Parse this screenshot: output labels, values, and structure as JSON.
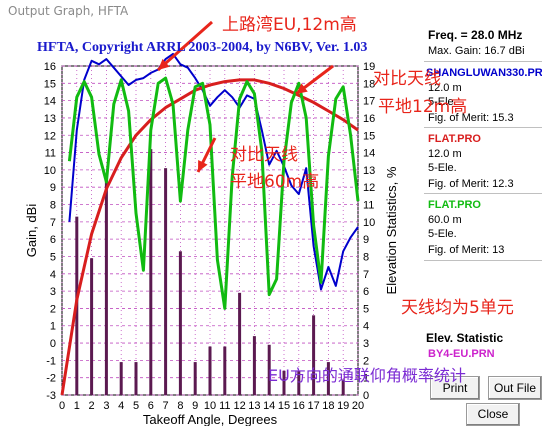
{
  "window": {
    "title": "Output Graph, HFTA"
  },
  "chart_title": "HFTA, Copyright ARRL 2003-2004, by N6BV, Ver. 1.03",
  "side_panel": {
    "freq": "Freq. = 28.0 MHz",
    "max_gain": "Max. Gain: 16.7 dBi",
    "entries": [
      {
        "name": "SHANGLUWAN330.PR",
        "height": "12.0 m",
        "elements": "5-Ele.",
        "fom": "Fig. of Merit:  15.3",
        "color": "#0000cc"
      },
      {
        "name": "FLAT.PRO",
        "height": "12.0 m",
        "elements": "5-Ele.",
        "fom": "Fig. of Merit:  12.3",
        "color": "#d81e1e"
      },
      {
        "name": "FLAT.PRO",
        "height": "60.0 m",
        "elements": "5-Ele.",
        "fom": "Fig. of Merit:  13",
        "color": "#11bb11"
      }
    ],
    "elev_title": "Elev. Statistic",
    "elev_file": "BY4-EU.PRN",
    "elev_file_color": "#cc22cc",
    "buttons": {
      "print": "Print",
      "out_file": "Out File",
      "close": "Close"
    }
  },
  "annotations": [
    {
      "text": "上路湾EU,12m高"
    },
    {
      "text": "对比天线"
    },
    {
      "text": "平地12m高"
    },
    {
      "text": "对比天线"
    },
    {
      "text": "平地60m高"
    },
    {
      "text": "天线均为5单元"
    },
    {
      "text": "EU方向的通联仰角概率统计"
    }
  ],
  "chart_data": {
    "type": "line",
    "xlabel": "Takeoff Angle, Degrees",
    "ylabel": "Gain, dBi",
    "y2label": "Elevation Statistics, %",
    "xlim": [
      0,
      20
    ],
    "ylim": [
      -3,
      16
    ],
    "y2lim": [
      0,
      19
    ],
    "x_ticks": [
      0,
      1,
      2,
      3,
      4,
      5,
      6,
      7,
      8,
      9,
      10,
      11,
      12,
      13,
      14,
      15,
      16,
      17,
      18,
      19,
      20
    ],
    "y_ticks": [
      -3,
      -2,
      -1,
      0,
      1,
      2,
      3,
      4,
      5,
      6,
      7,
      8,
      9,
      10,
      11,
      12,
      13,
      14,
      15,
      16
    ],
    "y2_ticks": [
      0,
      1,
      2,
      3,
      4,
      5,
      6,
      7,
      8,
      9,
      10,
      11,
      12,
      13,
      14,
      15,
      16,
      17,
      18,
      19
    ],
    "series": [
      {
        "name": "SHANGLUWAN330.PR",
        "color": "#0000cc",
        "x": [
          0.5,
          1,
          1.5,
          2,
          2.5,
          3,
          3.5,
          4,
          4.5,
          5,
          5.5,
          6,
          6.5,
          7,
          7.5,
          8,
          8.5,
          9,
          9.5,
          10,
          10.5,
          11,
          11.5,
          12,
          12.5,
          13,
          13.5,
          14,
          14.5,
          15,
          15.5,
          16,
          16.5,
          17,
          17.5,
          18,
          18.5,
          19,
          19.5,
          20
        ],
        "y": [
          7,
          12.3,
          15.2,
          16.3,
          16.1,
          16.4,
          15.9,
          15.4,
          14.9,
          15.2,
          15.3,
          15.6,
          15.8,
          16.4,
          16.7,
          16.1,
          15.9,
          15.3,
          14.6,
          13.7,
          14.2,
          14.6,
          14.2,
          13.6,
          14.3,
          14.1,
          12.3,
          10.3,
          11.1,
          10.2,
          9.1,
          8.6,
          10.1,
          5.6,
          3.1,
          4.4,
          3.3,
          5.3,
          6.1,
          6.7
        ]
      },
      {
        "name": "FLAT.PRO 12.0 m",
        "color": "#d81e1e",
        "x": [
          0,
          1,
          2,
          3,
          4,
          5,
          6,
          7,
          8,
          9,
          10,
          11,
          12,
          13,
          14,
          15,
          16,
          17,
          18,
          19,
          20
        ],
        "y": [
          -3,
          2.5,
          6.3,
          8.9,
          10.7,
          12.0,
          12.9,
          13.6,
          14.1,
          14.6,
          14.9,
          15.1,
          15.2,
          15.2,
          15.0,
          14.7,
          14.3,
          13.9,
          13.4,
          12.9,
          12.3
        ]
      },
      {
        "name": "FLAT.PRO 60.0 m",
        "color": "#11bb11",
        "x": [
          0.5,
          1,
          1.5,
          2,
          2.5,
          3,
          3.5,
          4,
          4.5,
          5,
          5.5,
          6,
          6.5,
          7,
          7.5,
          8,
          8.5,
          9,
          9.5,
          10,
          10.5,
          11,
          11.5,
          12,
          12.5,
          13,
          13.5,
          14,
          14.5,
          15,
          15.5,
          16,
          16.5,
          17,
          17.5,
          18,
          18.5,
          19,
          19.5,
          20
        ],
        "y": [
          10.5,
          14.2,
          15.1,
          14.2,
          10.9,
          9.3,
          13.8,
          15.2,
          13.4,
          7.5,
          4.2,
          12.3,
          15.0,
          15.3,
          13.8,
          8.2,
          12.3,
          14.8,
          15.0,
          12.6,
          4.8,
          2.0,
          9.6,
          14.1,
          15.1,
          14.4,
          11.1,
          2.8,
          3.7,
          10.5,
          13.9,
          15.0,
          13.0,
          6.8,
          3.5,
          10.8,
          14.1,
          14.8,
          12.0,
          8.2
        ]
      }
    ],
    "bars": {
      "name": "BY4-EU.PRN",
      "color": "#5b1a50",
      "x": [
        1,
        2,
        3,
        4,
        5,
        6,
        7,
        8,
        9,
        10,
        11,
        12,
        13,
        14,
        15,
        16,
        17,
        18,
        19
      ],
      "values": [
        10.3,
        7.9,
        12.6,
        1.9,
        1.9,
        14.2,
        13.1,
        8.3,
        1.9,
        2.8,
        2.8,
        5.9,
        3.4,
        2.9,
        1.4,
        1.4,
        4.6,
        1.9,
        0.9
      ]
    }
  }
}
